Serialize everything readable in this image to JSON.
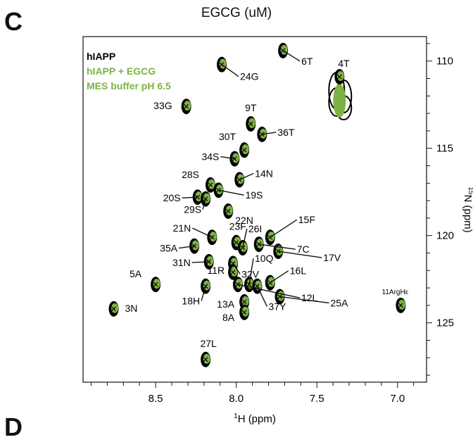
{
  "panel": {
    "letter": "C",
    "next_letter": "D"
  },
  "top_title": "EGCG (uM)",
  "colors": {
    "apo": "#000000",
    "holo": "#7cb342",
    "axis": "#111111",
    "legend_holo": "#7cb342"
  },
  "chart_data": {
    "type": "scatter",
    "title": "",
    "xlabel": "1H (ppm)",
    "ylabel": "15N (ppm)",
    "xlim": [
      8.95,
      6.82
    ],
    "ylim": [
      108.6,
      128.4
    ],
    "x_reversed": true,
    "y_reversed": true,
    "x_ticks": [
      8.5,
      8.0,
      7.5,
      7.0
    ],
    "y_ticks": [
      110,
      115,
      120,
      125
    ],
    "x_tick_labels": [
      "8.5",
      "8.0",
      "7.5",
      "7.0"
    ],
    "y_tick_labels": [
      "110",
      "115",
      "120",
      "125"
    ],
    "legend_position": "top-left",
    "legend": [
      {
        "name": "hIAPP",
        "color": "#000000"
      },
      {
        "name": "hIAPP + EGCG",
        "color": "#7cb342"
      },
      {
        "name": "MES buffer pH 6.5",
        "color": "#7cb342"
      }
    ],
    "peaks": [
      {
        "label": "6T",
        "x": 7.71,
        "y": 109.4
      },
      {
        "label": "24G",
        "x": 8.09,
        "y": 110.2
      },
      {
        "label": "4T",
        "x": 7.36,
        "y": 110.9
      },
      {
        "label": "33G",
        "x": 8.31,
        "y": 112.6
      },
      {
        "label": "9T",
        "x": 7.91,
        "y": 113.6
      },
      {
        "label": "36T",
        "x": 7.84,
        "y": 114.2
      },
      {
        "label": "30T",
        "x": 7.95,
        "y": 115.1
      },
      {
        "label": "34S",
        "x": 8.01,
        "y": 115.6
      },
      {
        "label": "14N",
        "x": 7.98,
        "y": 116.8
      },
      {
        "label": "28S",
        "x": 8.16,
        "y": 117.1
      },
      {
        "label": "19S",
        "x": 8.11,
        "y": 117.4
      },
      {
        "label": "20S",
        "x": 8.24,
        "y": 117.8
      },
      {
        "label": "29S",
        "x": 8.19,
        "y": 117.9
      },
      {
        "label": "22N",
        "x": 8.05,
        "y": 118.6
      },
      {
        "label": "21N",
        "x": 8.15,
        "y": 120.1
      },
      {
        "label": "23F",
        "x": 8.0,
        "y": 120.4
      },
      {
        "label": "26I",
        "x": 7.96,
        "y": 120.7
      },
      {
        "label": "15F",
        "x": 7.79,
        "y": 120.1
      },
      {
        "label": "35A",
        "x": 8.26,
        "y": 120.6
      },
      {
        "label": "7C",
        "x": 7.86,
        "y": 120.5
      },
      {
        "label": "17V",
        "x": 7.74,
        "y": 120.9
      },
      {
        "label": "31N",
        "x": 8.17,
        "y": 121.5
      },
      {
        "label": "32V",
        "x": 8.02,
        "y": 121.6
      },
      {
        "label": "11R",
        "x": 8.02,
        "y": 122.1
      },
      {
        "label": "10Q",
        "x": 7.92,
        "y": 122.8
      },
      {
        "label": "16L",
        "x": 7.79,
        "y": 122.7
      },
      {
        "label": "5A",
        "x": 8.5,
        "y": 122.8
      },
      {
        "label": "12L",
        "x": 7.99,
        "y": 122.8
      },
      {
        "label": "18H",
        "x": 8.19,
        "y": 122.9
      },
      {
        "label": "25A",
        "x": 7.73,
        "y": 123.5
      },
      {
        "label": "13A",
        "x": 7.95,
        "y": 123.8
      },
      {
        "label": "37Y",
        "x": 7.87,
        "y": 122.9
      },
      {
        "label": "8A",
        "x": 7.95,
        "y": 124.4
      },
      {
        "label": "3N",
        "x": 8.76,
        "y": 124.2
      },
      {
        "label": "11ArgHε",
        "x": 6.98,
        "y": 124.0
      },
      {
        "label": "27L",
        "x": 8.19,
        "y": 127.1
      }
    ]
  }
}
